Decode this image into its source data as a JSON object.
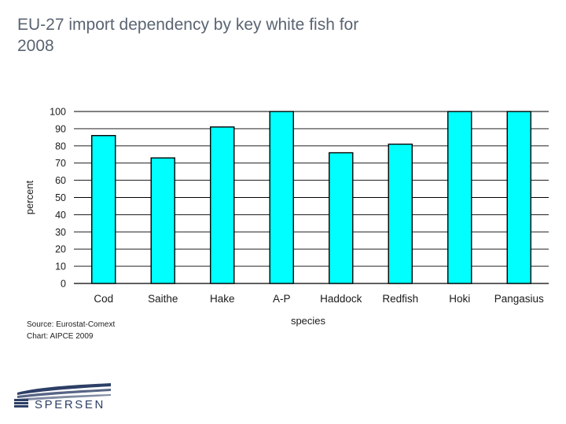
{
  "slide": {
    "title": "EU-27 import dependency by key white fish for 2008",
    "source_note": "Source: Eurostat-Comext",
    "chart_note": "Chart: AIPCE 2009",
    "logo_text": "SPERSEN"
  },
  "colors": {
    "bar_fill": "#00ffff",
    "bar_stroke": "#000000",
    "plot_background": "#ffffff",
    "gridline": "#000000",
    "title_text": "#5a6472",
    "logo": "#2d3f66"
  },
  "chart_data": {
    "type": "bar",
    "title": "",
    "xlabel": "species",
    "ylabel": "percent",
    "categories": [
      "Cod",
      "Saithe",
      "Hake",
      "A-P",
      "Haddock",
      "Redfish",
      "Hoki",
      "Pangasius"
    ],
    "values": [
      86,
      73,
      91,
      100,
      76,
      81,
      100,
      100
    ],
    "yticks": [
      0,
      10,
      20,
      30,
      40,
      50,
      60,
      70,
      80,
      90,
      100
    ],
    "ylim": [
      0,
      100
    ],
    "grid": true,
    "legend": "none"
  }
}
